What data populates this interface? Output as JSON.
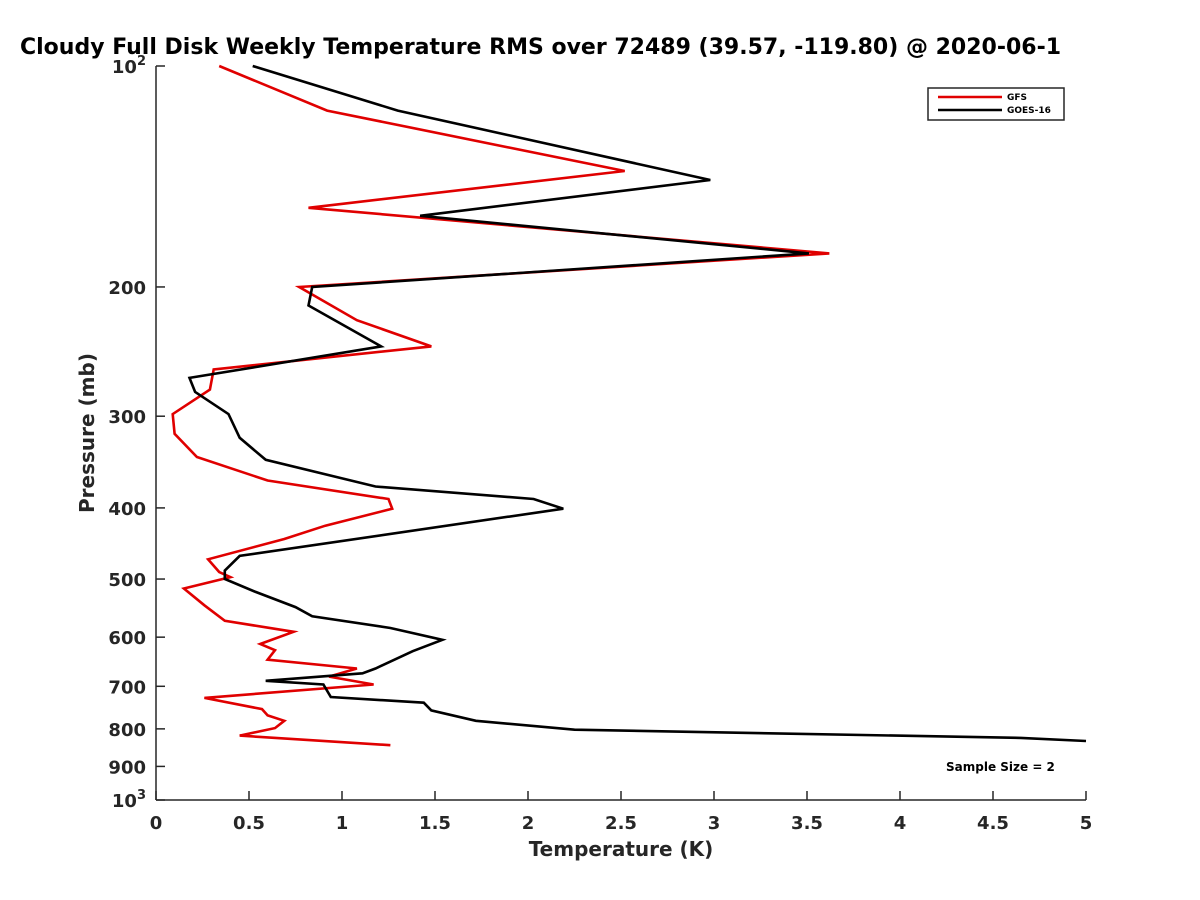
{
  "chart_data": {
    "type": "line",
    "title": "Cloudy Full Disk Weekly Temperature RMS over 72489 (39.57, -119.80) @ 2020-06-1",
    "xlabel": "Temperature (K)",
    "ylabel": "Pressure (mb)",
    "xlim": [
      0,
      5
    ],
    "ylim": [
      100,
      1000
    ],
    "y_scale": "log",
    "y_reversed": true,
    "x_ticks": [
      0,
      0.5,
      1,
      1.5,
      2,
      2.5,
      3,
      3.5,
      4,
      4.5,
      5
    ],
    "x_tick_labels": [
      "0",
      "0.5",
      "1",
      "1.5",
      "2",
      "2.5",
      "3",
      "3.5",
      "4",
      "4.5",
      "5"
    ],
    "y_ticks": [
      100,
      200,
      300,
      400,
      500,
      600,
      700,
      800,
      900,
      1000
    ],
    "y_tick_labels": [
      {
        "base": "10",
        "exp": "2"
      },
      {
        "base": "200",
        "exp": ""
      },
      {
        "base": "300",
        "exp": ""
      },
      {
        "base": "400",
        "exp": ""
      },
      {
        "base": "500",
        "exp": ""
      },
      {
        "base": "600",
        "exp": ""
      },
      {
        "base": "700",
        "exp": ""
      },
      {
        "base": "800",
        "exp": ""
      },
      {
        "base": "900",
        "exp": ""
      },
      {
        "base": "10",
        "exp": "3"
      }
    ],
    "grid": false,
    "legend_position": "top-right",
    "annotation": "Sample Size = 2",
    "series": [
      {
        "name": "GFS",
        "color": "#e00000",
        "points": [
          [
            0.34,
            100
          ],
          [
            0.92,
            115
          ],
          [
            2.52,
            139
          ],
          [
            0.82,
            156
          ],
          [
            3.62,
            180
          ],
          [
            0.77,
            200
          ],
          [
            1.08,
            222
          ],
          [
            1.48,
            241
          ],
          [
            0.31,
            259
          ],
          [
            0.29,
            276
          ],
          [
            0.09,
            298
          ],
          [
            0.1,
            317
          ],
          [
            0.22,
            341
          ],
          [
            0.6,
            367
          ],
          [
            1.25,
            389
          ],
          [
            1.27,
            401
          ],
          [
            0.91,
            423
          ],
          [
            0.69,
            441
          ],
          [
            0.28,
            470
          ],
          [
            0.34,
            489
          ],
          [
            0.4,
            497
          ],
          [
            0.15,
            515
          ],
          [
            0.26,
            543
          ],
          [
            0.37,
            570
          ],
          [
            0.74,
            590
          ],
          [
            0.56,
            613
          ],
          [
            0.64,
            625
          ],
          [
            0.6,
            644
          ],
          [
            1.08,
            662
          ],
          [
            0.93,
            679
          ],
          [
            1.17,
            696
          ],
          [
            0.26,
            726
          ],
          [
            0.57,
            752
          ],
          [
            0.6,
            767
          ],
          [
            0.69,
            780
          ],
          [
            0.64,
            798
          ],
          [
            0.45,
            817
          ],
          [
            1.26,
            842
          ]
        ]
      },
      {
        "name": "GOES-16",
        "color": "#000000",
        "points": [
          [
            0.52,
            100
          ],
          [
            1.3,
            115
          ],
          [
            2.98,
            143
          ],
          [
            1.42,
            160
          ],
          [
            3.51,
            180
          ],
          [
            0.84,
            200
          ],
          [
            0.82,
            212
          ],
          [
            1.21,
            241
          ],
          [
            0.18,
            266
          ],
          [
            0.21,
            278
          ],
          [
            0.39,
            298
          ],
          [
            0.45,
            321
          ],
          [
            0.59,
            344
          ],
          [
            1.18,
            374
          ],
          [
            2.03,
            389
          ],
          [
            2.19,
            401
          ],
          [
            0.45,
            465
          ],
          [
            0.37,
            487
          ],
          [
            0.37,
            500
          ],
          [
            0.53,
            520
          ],
          [
            0.75,
            546
          ],
          [
            0.84,
            562
          ],
          [
            1.26,
            583
          ],
          [
            1.54,
            605
          ],
          [
            1.38,
            627
          ],
          [
            1.18,
            662
          ],
          [
            1.11,
            672
          ],
          [
            0.59,
            688
          ],
          [
            0.9,
            696
          ],
          [
            0.94,
            724
          ],
          [
            1.44,
            737
          ],
          [
            1.48,
            755
          ],
          [
            1.72,
            780
          ],
          [
            2.25,
            802
          ],
          [
            4.65,
            823
          ],
          [
            5.0,
            831
          ]
        ]
      }
    ]
  }
}
